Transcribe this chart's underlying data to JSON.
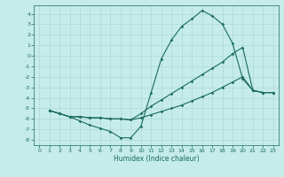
{
  "xlabel": "Humidex (Indice chaleur)",
  "bg_color": "#c5ecea",
  "line_color": "#1a6b5e",
  "grid_color": "#afd8d4",
  "xlim": [
    -0.5,
    23.5
  ],
  "ylim": [
    -8.5,
    4.8
  ],
  "xticks": [
    0,
    1,
    2,
    3,
    4,
    5,
    6,
    7,
    8,
    9,
    10,
    11,
    12,
    13,
    14,
    15,
    16,
    17,
    18,
    19,
    20,
    21,
    22,
    23
  ],
  "yticks": [
    -8,
    -7,
    -6,
    -5,
    -4,
    -3,
    -2,
    -1,
    0,
    1,
    2,
    3,
    4
  ],
  "line1_x": [
    1,
    2,
    3,
    4,
    5,
    6,
    7,
    8,
    9,
    10,
    11,
    12,
    13,
    14,
    15,
    16,
    17,
    18,
    19,
    20,
    21,
    22,
    23
  ],
  "line1_y": [
    -5.2,
    -5.5,
    -5.8,
    -6.2,
    -6.6,
    -6.9,
    -7.2,
    -7.8,
    -7.8,
    -6.7,
    -3.5,
    -0.3,
    1.5,
    2.8,
    3.5,
    4.3,
    3.8,
    3.0,
    1.2,
    -2.2,
    -3.3,
    -3.5,
    -3.5
  ],
  "line2_x": [
    1,
    2,
    3,
    4,
    5,
    6,
    7,
    8,
    9,
    10,
    11,
    12,
    13,
    14,
    15,
    16,
    17,
    18,
    19,
    20,
    21,
    22,
    23
  ],
  "line2_y": [
    -5.2,
    -5.5,
    -5.8,
    -5.8,
    -5.9,
    -5.9,
    -6.0,
    -6.0,
    -6.1,
    -5.9,
    -5.6,
    -5.3,
    -5.0,
    -4.7,
    -4.3,
    -3.9,
    -3.5,
    -3.0,
    -2.5,
    -2.0,
    -3.3,
    -3.5,
    -3.5
  ],
  "line3_x": [
    1,
    2,
    3,
    4,
    5,
    6,
    7,
    8,
    9,
    10,
    11,
    12,
    13,
    14,
    15,
    16,
    17,
    18,
    19,
    20,
    21,
    22,
    23
  ],
  "line3_y": [
    -5.2,
    -5.5,
    -5.8,
    -5.8,
    -5.9,
    -5.9,
    -6.0,
    -6.0,
    -6.1,
    -5.5,
    -4.8,
    -4.2,
    -3.6,
    -3.0,
    -2.4,
    -1.8,
    -1.2,
    -0.6,
    0.2,
    0.8,
    -3.3,
    -3.5,
    -3.5
  ],
  "xlabel_fontsize": 5.5,
  "tick_fontsize": 4.5,
  "lw": 0.8,
  "ms": 1.8
}
